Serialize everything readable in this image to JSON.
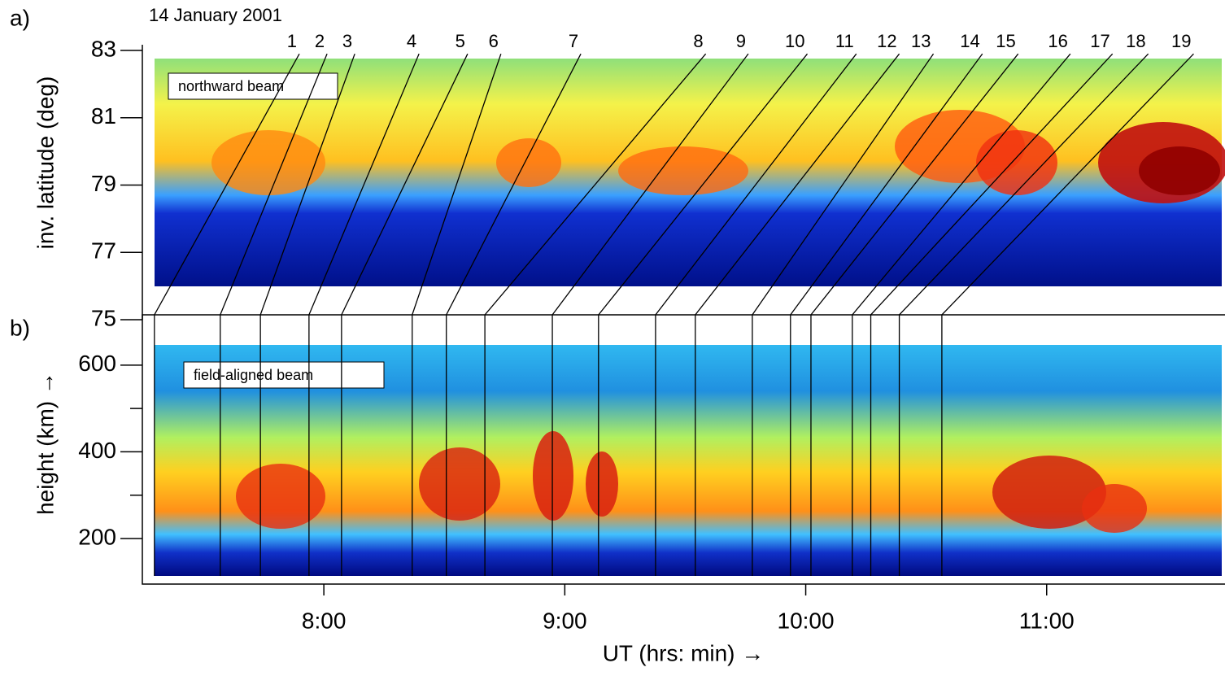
{
  "chart_data": [
    {
      "type": "heatmap",
      "panel_label": "a)",
      "title": "14 January 2001",
      "annotation": "northward beam",
      "y_label": "inv. latitude (deg)",
      "ylim": [
        75,
        83.17
      ],
      "yticks": [
        75,
        77,
        79,
        81,
        83
      ],
      "xlim": [
        434.8,
        703.6
      ],
      "event_lat_top": 82.9
    },
    {
      "type": "heatmap",
      "panel_label": "b)",
      "annotation": "field-aligned beam",
      "y_label": "height (km) →",
      "ylim": [
        95,
        716
      ],
      "yticks": [
        200,
        400,
        600
      ],
      "y_minor_ticks": [
        300,
        500
      ],
      "x_label": "UT (hrs: min)  →",
      "xlim": [
        434.8,
        703.6
      ],
      "xticks": [
        {
          "value": 480,
          "label": "8:00"
        },
        {
          "value": 540,
          "label": "9:00"
        },
        {
          "value": 600,
          "label": "10:00"
        },
        {
          "value": 660,
          "label": "11:00"
        }
      ]
    }
  ],
  "events": [
    {
      "label": "1",
      "t_field_aligned": 437.8,
      "t_northward": 473.9
    },
    {
      "label": "2",
      "t_field_aligned": 454.2,
      "t_northward": 480.8
    },
    {
      "label": "3",
      "t_field_aligned": 464.2,
      "t_northward": 487.7
    },
    {
      "label": "4",
      "t_field_aligned": 476.3,
      "t_northward": 503.7
    },
    {
      "label": "5",
      "t_field_aligned": 484.4,
      "t_northward": 515.8
    },
    {
      "label": "6",
      "t_field_aligned": 502.0,
      "t_northward": 524.1
    },
    {
      "label": "7",
      "t_field_aligned": 510.5,
      "t_northward": 544.0
    },
    {
      "label": "8",
      "t_field_aligned": 520.1,
      "t_northward": 575.1
    },
    {
      "label": "9",
      "t_field_aligned": 536.9,
      "t_northward": 585.7
    },
    {
      "label": "10",
      "t_field_aligned": 548.4,
      "t_northward": 600.4
    },
    {
      "label": "11",
      "t_field_aligned": 562.6,
      "t_northward": 612.6
    },
    {
      "label": "12",
      "t_field_aligned": 572.5,
      "t_northward": 623.3
    },
    {
      "label": "13",
      "t_field_aligned": 586.7,
      "t_northward": 631.8
    },
    {
      "label": "14",
      "t_field_aligned": 596.2,
      "t_northward": 644.0
    },
    {
      "label": "15",
      "t_field_aligned": 601.3,
      "t_northward": 652.9
    },
    {
      "label": "16",
      "t_field_aligned": 611.6,
      "t_northward": 665.9
    },
    {
      "label": "17",
      "t_field_aligned": 616.2,
      "t_northward": 676.4
    },
    {
      "label": "18",
      "t_field_aligned": 623.3,
      "t_northward": 685.3
    },
    {
      "label": "19",
      "t_field_aligned": 633.9,
      "t_northward": 696.6
    }
  ]
}
